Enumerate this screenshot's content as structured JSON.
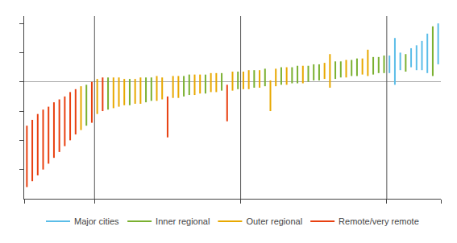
{
  "chart_data": {
    "type": "interval",
    "series": [
      {
        "name": "Major cities",
        "color": "#5bbde8"
      },
      {
        "name": "Inner regional",
        "color": "#7ab030"
      },
      {
        "name": "Outer regional",
        "color": "#e8a800"
      },
      {
        "name": "Remote/very remote",
        "color": "#e84010"
      }
    ],
    "low": [
      -0.72,
      -0.68,
      -0.64,
      -0.6,
      -0.56,
      -0.52,
      -0.48,
      -0.44,
      -0.4,
      -0.36,
      -0.33,
      -0.3,
      -0.28,
      -0.22,
      -0.2,
      -0.19,
      -0.18,
      -0.17,
      -0.16,
      -0.16,
      -0.15,
      -0.15,
      -0.14,
      -0.13,
      -0.13,
      -0.12,
      -0.38,
      -0.11,
      -0.11,
      -0.1,
      -0.09,
      -0.09,
      -0.08,
      -0.08,
      -0.07,
      -0.07,
      -0.06,
      -0.27,
      -0.06,
      -0.05,
      -0.05,
      -0.05,
      -0.04,
      -0.04,
      -0.03,
      -0.2,
      -0.03,
      -0.02,
      -0.02,
      -0.01,
      -0.01,
      -0.01,
      0.0,
      0.01,
      0.01,
      0.02,
      -0.04,
      0.02,
      0.03,
      0.03,
      0.04,
      0.04,
      0.05,
      0.04,
      0.05,
      0.06,
      0.06,
      0.06,
      -0.02,
      0.08,
      0.07,
      0.1,
      0.08,
      0.08,
      0.06,
      0.04,
      0.12
    ],
    "high": [
      -0.3,
      -0.26,
      -0.22,
      -0.19,
      -0.17,
      -0.14,
      -0.12,
      -0.1,
      -0.07,
      -0.05,
      -0.03,
      -0.02,
      0.0,
      0.02,
      0.03,
      0.03,
      0.03,
      0.03,
      0.02,
      0.02,
      0.02,
      0.03,
      0.03,
      0.03,
      0.04,
      0.03,
      -0.1,
      0.04,
      0.04,
      0.04,
      0.05,
      0.05,
      0.05,
      0.05,
      0.06,
      0.06,
      0.06,
      -0.02,
      0.07,
      0.07,
      0.07,
      0.08,
      0.08,
      0.08,
      0.09,
      0.01,
      0.09,
      0.1,
      0.1,
      0.1,
      0.11,
      0.11,
      0.11,
      0.12,
      0.12,
      0.13,
      0.19,
      0.14,
      0.14,
      0.15,
      0.15,
      0.16,
      0.16,
      0.22,
      0.17,
      0.17,
      0.18,
      0.18,
      0.3,
      0.2,
      0.19,
      0.23,
      0.25,
      0.28,
      0.33,
      0.38,
      0.4
    ],
    "colors": [
      "#e84010",
      "#e84010",
      "#e84010",
      "#e84010",
      "#e84010",
      "#e84010",
      "#e84010",
      "#e84010",
      "#e84010",
      "#e84010",
      "#e8a800",
      "#7ab030",
      "#e84010",
      "#e8a800",
      "#e84010",
      "#7ab030",
      "#e8a800",
      "#e8a800",
      "#e8a800",
      "#7ab030",
      "#e8a800",
      "#e8a800",
      "#7ab030",
      "#7ab030",
      "#e8a800",
      "#e8a800",
      "#e84010",
      "#e8a800",
      "#e8a800",
      "#7ab030",
      "#7ab030",
      "#e8a800",
      "#e8a800",
      "#7ab030",
      "#e8a800",
      "#e8a800",
      "#7ab030",
      "#e84010",
      "#e8a800",
      "#7ab030",
      "#e8a800",
      "#e8a800",
      "#7ab030",
      "#e8a800",
      "#7ab030",
      "#e8a800",
      "#e8a800",
      "#7ab030",
      "#e8a800",
      "#7ab030",
      "#7ab030",
      "#e8a800",
      "#7ab030",
      "#7ab030",
      "#7ab030",
      "#e8a800",
      "#e8a800",
      "#7ab030",
      "#7ab030",
      "#e8a800",
      "#7ab030",
      "#7ab030",
      "#e8a800",
      "#e8a800",
      "#7ab030",
      "#7ab030",
      "#7ab030",
      "#5bbde8",
      "#5bbde8",
      "#5bbde8",
      "#7ab030",
      "#5bbde8",
      "#5bbde8",
      "#5bbde8",
      "#5bbde8",
      "#7ab030",
      "#5bbde8"
    ],
    "xlim": [
      0,
      77
    ],
    "xticks": [
      0,
      13,
      40,
      67,
      77
    ],
    "ylim": [
      -0.8,
      0.45
    ],
    "yticks": [
      -0.6,
      -0.4,
      -0.2,
      0.0,
      0.2,
      0.4
    ],
    "group_dividers": [
      13,
      40,
      67
    ],
    "tick_labels": false,
    "grid": false,
    "legend": "bottom"
  }
}
